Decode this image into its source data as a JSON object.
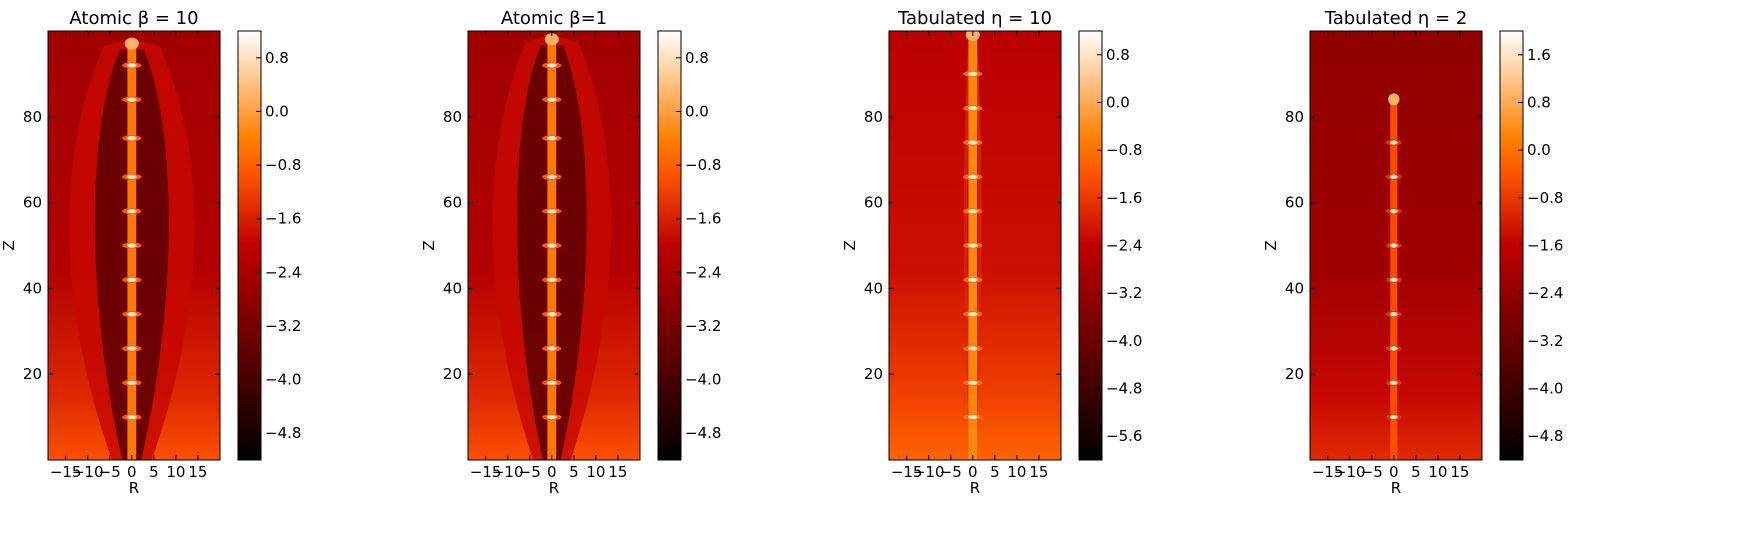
{
  "chart_data": [
    {
      "type": "heatmap",
      "title": "Atomic β = 10",
      "xlabel": "R",
      "ylabel": "Z",
      "xlim": [
        -19,
        20
      ],
      "ylim": [
        0,
        100
      ],
      "xticks": [
        -15,
        -10,
        -5,
        0,
        5,
        10,
        15
      ],
      "xtick_labels": [
        "−15",
        "−10",
        "−5",
        "0",
        "5",
        "10",
        "15"
      ],
      "yticks": [
        20,
        40,
        60,
        80
      ],
      "ytick_labels": [
        "20",
        "40",
        "60",
        "80"
      ],
      "colorbar": {
        "range": [
          -5.2,
          1.2
        ],
        "ticks": [
          0.8,
          0.0,
          -0.8,
          -1.6,
          -2.4,
          -3.2,
          -4.0,
          -4.8
        ],
        "tick_labels": [
          "0.8",
          "0.0",
          "−0.8",
          "−1.6",
          "−2.4",
          "−3.2",
          "−4.0",
          "−4.8"
        ]
      },
      "colormap": "gist_heat",
      "jet": {
        "core_halfwidth": 1.0,
        "cocoon_halfwidth": 18.0,
        "head_z": 98,
        "knots": [
          10,
          18,
          26,
          34,
          42,
          50,
          58,
          66,
          75,
          84,
          92
        ]
      }
    },
    {
      "type": "heatmap",
      "title": "Atomic β=1",
      "xlabel": "R",
      "ylabel": "Z",
      "xlim": [
        -19,
        20
      ],
      "ylim": [
        0,
        100
      ],
      "xticks": [
        -15,
        -10,
        -5,
        0,
        5,
        10,
        15
      ],
      "xtick_labels": [
        "−15",
        "−10",
        "−5",
        "0",
        "5",
        "10",
        "15"
      ],
      "yticks": [
        20,
        40,
        60,
        80
      ],
      "ytick_labels": [
        "20",
        "40",
        "60",
        "80"
      ],
      "colorbar": {
        "range": [
          -5.2,
          1.2
        ],
        "ticks": [
          0.8,
          0.0,
          -0.8,
          -1.6,
          -2.4,
          -3.2,
          -4.0,
          -4.8
        ],
        "tick_labels": [
          "0.8",
          "0.0",
          "−0.8",
          "−1.6",
          "−2.4",
          "−3.2",
          "−4.0",
          "−4.8"
        ]
      },
      "colormap": "gist_heat",
      "jet": {
        "core_halfwidth": 1.0,
        "cocoon_halfwidth": 17.0,
        "head_z": 99,
        "knots": [
          10,
          18,
          26,
          34,
          42,
          50,
          58,
          66,
          75,
          84,
          92
        ]
      }
    },
    {
      "type": "heatmap",
      "title": "Tabulated η = 10",
      "xlabel": "R",
      "ylabel": "Z",
      "xlim": [
        -19,
        20
      ],
      "ylim": [
        0,
        100
      ],
      "xticks": [
        -15,
        -10,
        -5,
        0,
        5,
        10,
        15
      ],
      "xtick_labels": [
        "−15",
        "−10",
        "−5",
        "0",
        "5",
        "10",
        "15"
      ],
      "yticks": [
        20,
        40,
        60,
        80
      ],
      "ytick_labels": [
        "20",
        "40",
        "60",
        "80"
      ],
      "colorbar": {
        "range": [
          -6.0,
          1.2
        ],
        "ticks": [
          0.8,
          0.0,
          -0.8,
          -1.6,
          -2.4,
          -3.2,
          -4.0,
          -4.8,
          -5.6
        ],
        "tick_labels": [
          "0.8",
          "0.0",
          "−0.8",
          "−1.6",
          "−2.4",
          "−3.2",
          "−4.0",
          "−4.8",
          "−5.6"
        ]
      },
      "colormap": "gist_heat",
      "jet": {
        "core_halfwidth": 1.0,
        "cocoon_halfwidth": 2.6,
        "head_z": 100,
        "knots": [
          10,
          18,
          26,
          34,
          42,
          50,
          58,
          66,
          74,
          82,
          90
        ]
      }
    },
    {
      "type": "heatmap",
      "title": "Tabulated η = 2",
      "xlabel": "R",
      "ylabel": "Z",
      "xlim": [
        -19,
        20
      ],
      "ylim": [
        0,
        100
      ],
      "xticks": [
        -15,
        -10,
        -5,
        0,
        5,
        10,
        15
      ],
      "xtick_labels": [
        "−15",
        "−10",
        "−5",
        "0",
        "5",
        "10",
        "15"
      ],
      "yticks": [
        20,
        40,
        60,
        80
      ],
      "ytick_labels": [
        "20",
        "40",
        "60",
        "80"
      ],
      "colorbar": {
        "range": [
          -5.2,
          2.0
        ],
        "ticks": [
          1.6,
          0.8,
          0.0,
          -0.8,
          -1.6,
          -2.4,
          -3.2,
          -4.0,
          -4.8
        ],
        "tick_labels": [
          "1.6",
          "0.8",
          "0.0",
          "−0.8",
          "−1.6",
          "−2.4",
          "−3.2",
          "−4.0",
          "−4.8"
        ]
      },
      "colormap": "gist_heat",
      "jet": {
        "core_halfwidth": 0.8,
        "cocoon_halfwidth": 1.8,
        "head_z": 85,
        "knots": [
          10,
          18,
          26,
          34,
          42,
          50,
          58,
          66,
          74
        ]
      }
    }
  ]
}
